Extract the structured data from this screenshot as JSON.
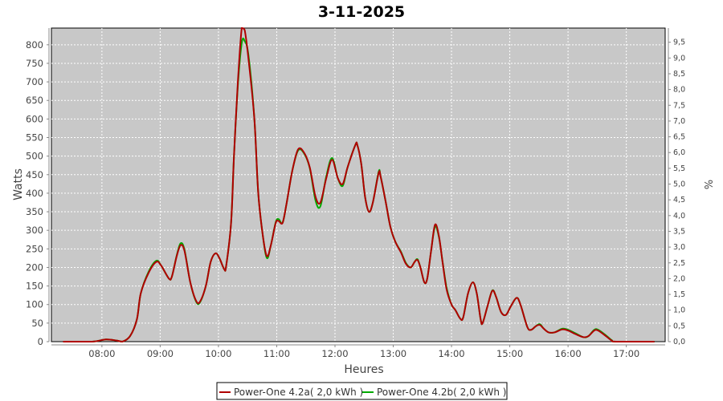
{
  "chart_data": {
    "type": "line",
    "title": "3-11-2025",
    "xlabel": "Heures",
    "ylabel": "Watts",
    "y2label": "%",
    "xlim": [
      "07:08",
      "17:40"
    ],
    "ylim": [
      0,
      845
    ],
    "y2lim": [
      0,
      9.95
    ],
    "x_ticks": [
      "08:00",
      "09:00",
      "10:00",
      "11:00",
      "12:00",
      "13:00",
      "14:00",
      "15:00",
      "16:00",
      "17:00"
    ],
    "y_ticks": [
      0,
      50,
      100,
      150,
      200,
      250,
      300,
      350,
      400,
      450,
      500,
      550,
      600,
      650,
      700,
      750,
      800
    ],
    "y2_ticks": [
      "0,0",
      "0,5",
      "1,0",
      "1,5",
      "2,0",
      "2,5",
      "3,0",
      "3,5",
      "4,0",
      "4,5",
      "5,0",
      "5,5",
      "6,0",
      "6,5",
      "7,0",
      "7,5",
      "8,0",
      "8,5",
      "9,0",
      "9,5"
    ],
    "grid": true,
    "legend_position": "bottom",
    "background": "#c8c8c8",
    "x": [
      "07:20",
      "07:50",
      "08:04",
      "08:15",
      "08:21",
      "08:29",
      "08:36",
      "08:40",
      "08:48",
      "08:56",
      "09:01",
      "09:09",
      "09:12",
      "09:17",
      "09:21",
      "09:25",
      "09:31",
      "09:37",
      "09:41",
      "09:47",
      "09:52",
      "09:57",
      "10:01",
      "10:06",
      "10:08",
      "10:13",
      "10:16",
      "10:20",
      "10:24",
      "10:27",
      "10:31",
      "10:37",
      "10:41",
      "10:46",
      "10:50",
      "10:54",
      "10:59",
      "11:02",
      "11:06",
      "11:10",
      "11:16",
      "11:22",
      "11:28",
      "11:34",
      "11:40",
      "11:45",
      "11:51",
      "11:57",
      "12:03",
      "12:08",
      "12:13",
      "12:21",
      "12:23",
      "12:27",
      "12:31",
      "12:35",
      "12:39",
      "12:45",
      "12:47",
      "12:52",
      "12:57",
      "13:02",
      "13:08",
      "13:13",
      "13:18",
      "13:22",
      "13:25",
      "13:28",
      "13:32",
      "13:35",
      "13:39",
      "13:43",
      "13:47",
      "13:51",
      "13:55",
      "14:00",
      "14:04",
      "14:09",
      "14:12",
      "14:17",
      "14:22",
      "14:26",
      "14:30",
      "14:32",
      "14:37",
      "14:42",
      "14:46",
      "14:51",
      "14:56",
      "15:01",
      "15:07",
      "15:11",
      "15:18",
      "15:22",
      "15:27",
      "15:31",
      "15:35",
      "15:40",
      "15:46",
      "15:54",
      "16:00",
      "16:08",
      "16:16",
      "16:21",
      "16:27",
      "16:31",
      "16:39",
      "16:45",
      "16:50",
      "17:29"
    ],
    "series": [
      {
        "name": "Power-One 4.2b( 2,0 kWh )",
        "color": "#00aa00",
        "values": [
          0,
          0,
          6,
          3,
          0,
          15,
          60,
          130,
          188,
          218,
          205,
          170,
          175,
          232,
          265,
          248,
          160,
          108,
          106,
          150,
          215,
          238,
          225,
          195,
          205,
          320,
          500,
          690,
          805,
          810,
          770,
          600,
          400,
          280,
          225,
          260,
          322,
          330,
          320,
          370,
          460,
          515,
          508,
          468,
          380,
          365,
          445,
          495,
          440,
          420,
          470,
          530,
          530,
          480,
          390,
          350,
          375,
          458,
          445,
          380,
          310,
          270,
          242,
          212,
          200,
          215,
          222,
          200,
          160,
          170,
          245,
          310,
          282,
          212,
          145,
          100,
          85,
          62,
          65,
          130,
          160,
          130,
          60,
          50,
          95,
          138,
          120,
          80,
          72,
          95,
          118,
          100,
          40,
          32,
          42,
          47,
          35,
          25,
          25,
          35,
          32,
          22,
          12,
          15,
          32,
          32,
          17,
          4,
          0,
          0
        ]
      },
      {
        "name": "Power-One 4.2a( 2,0 kWh )",
        "color": "#b00000",
        "values": [
          0,
          0,
          6,
          3,
          0,
          15,
          60,
          130,
          185,
          215,
          205,
          170,
          175,
          230,
          260,
          245,
          160,
          110,
          108,
          150,
          215,
          238,
          225,
          195,
          205,
          320,
          500,
          700,
          845,
          840,
          760,
          600,
          400,
          280,
          230,
          260,
          320,
          325,
          320,
          370,
          460,
          518,
          510,
          470,
          390,
          375,
          440,
          490,
          440,
          425,
          470,
          530,
          530,
          480,
          390,
          350,
          375,
          455,
          445,
          380,
          310,
          270,
          240,
          210,
          200,
          215,
          220,
          200,
          160,
          170,
          245,
          315,
          285,
          210,
          140,
          100,
          85,
          62,
          65,
          130,
          160,
          130,
          60,
          50,
          95,
          137,
          120,
          80,
          72,
          95,
          118,
          100,
          40,
          32,
          42,
          45,
          35,
          25,
          25,
          33,
          30,
          20,
          12,
          15,
          30,
          30,
          15,
          3,
          0,
          0
        ]
      }
    ],
    "legend": [
      {
        "label": "Power-One 4.2a( 2,0 kWh )",
        "color": "#b00000"
      },
      {
        "label": "Power-One 4.2b( 2,0 kWh )",
        "color": "#00aa00"
      }
    ]
  }
}
